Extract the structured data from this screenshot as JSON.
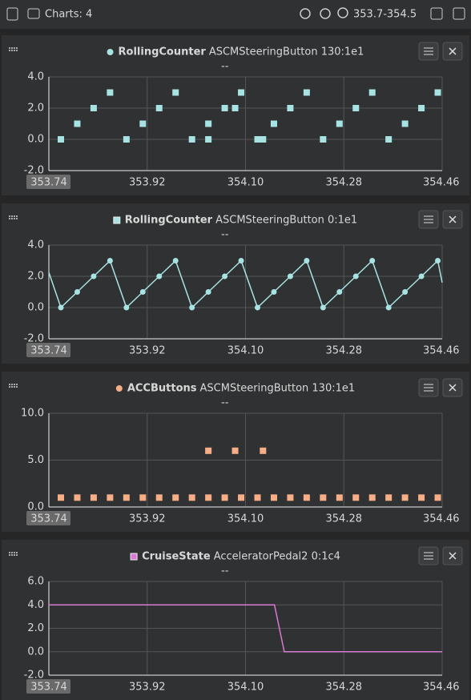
{
  "toolbar": {
    "charts_label": "Charts: 4",
    "range": "353.7-354.5"
  },
  "chart_data": [
    {
      "type": "scatter",
      "subtitle": "ASCMSteeringButton 130:1e1",
      "annotation": "--",
      "xlim": [
        353.74,
        354.46
      ],
      "xticks": [
        353.74,
        353.92,
        {
          "value": 354.1,
          "label": "354.10"
        },
        354.28,
        354.46
      ],
      "ylim": [
        -2,
        4
      ],
      "yticks": [
        {
          "value": 4,
          "label": "4.0"
        },
        {
          "value": 2,
          "label": "2.0"
        },
        {
          "value": 0,
          "label": "0.0"
        },
        {
          "value": -2,
          "label": "-2.0"
        }
      ],
      "grid": true,
      "series": [
        {
          "name": "RollingCounter",
          "color": "#a8e3e3",
          "x": [
            353.762,
            353.792,
            353.822,
            353.852,
            353.882,
            353.912,
            353.942,
            353.972,
            354.002,
            354.032,
            354.032,
            354.062,
            354.081,
            354.092,
            354.122,
            354.132,
            354.152,
            354.182,
            354.212,
            354.242,
            354.272,
            354.302,
            354.332,
            354.362,
            354.392,
            354.422,
            354.452
          ],
          "values": [
            0,
            1,
            2,
            3,
            0,
            1,
            2,
            3,
            0,
            1,
            0,
            2,
            2,
            3,
            0,
            0,
            1,
            2,
            3,
            0,
            1,
            2,
            3,
            0,
            1,
            2,
            3
          ]
        }
      ]
    },
    {
      "type": "line",
      "subtitle": "ASCMSteeringButton 0:1e1",
      "annotation": "--",
      "xlim": [
        353.74,
        354.46
      ],
      "xticks": [
        353.74,
        353.92,
        {
          "value": 354.1,
          "label": "354.10"
        },
        354.28,
        354.46
      ],
      "ylim": [
        -2,
        4
      ],
      "yticks": [
        {
          "value": 4,
          "label": "4.0"
        },
        {
          "value": 2,
          "label": "2.0"
        },
        {
          "value": 0,
          "label": "0.0"
        },
        {
          "value": -2,
          "label": "-2.0"
        }
      ],
      "grid": true,
      "series": [
        {
          "name": "RollingCounter",
          "color": "#a8e3e3",
          "x": [
            353.74,
            353.762,
            353.792,
            353.822,
            353.852,
            353.882,
            353.912,
            353.942,
            353.972,
            354.002,
            354.032,
            354.062,
            354.092,
            354.122,
            354.152,
            354.182,
            354.212,
            354.242,
            354.272,
            354.302,
            354.332,
            354.362,
            354.392,
            354.422,
            354.452,
            354.46
          ],
          "values": [
            2.25,
            0,
            1,
            2,
            3,
            0,
            1,
            2,
            3,
            0,
            1,
            2,
            3,
            0,
            1,
            2,
            3,
            0,
            1,
            2,
            3,
            0,
            1,
            2,
            3,
            1.6
          ]
        }
      ]
    },
    {
      "type": "scatter",
      "subtitle": "ASCMSteeringButton 130:1e1",
      "annotation": "--",
      "xlim": [
        353.74,
        354.46
      ],
      "xticks": [
        353.74,
        353.92,
        {
          "value": 354.1,
          "label": "354.10"
        },
        354.28,
        354.46
      ],
      "ylim": [
        0,
        10
      ],
      "yticks": [
        {
          "value": 10,
          "label": "10.0"
        },
        {
          "value": 5,
          "label": "5.0"
        },
        {
          "value": 0,
          "label": "0.0"
        }
      ],
      "grid": true,
      "series": [
        {
          "name": "ACCButtons",
          "color": "#f7ae87",
          "x": [
            353.762,
            353.792,
            353.822,
            353.852,
            353.882,
            353.912,
            353.942,
            353.972,
            354.002,
            354.032,
            354.032,
            354.062,
            354.081,
            354.092,
            354.122,
            354.132,
            354.152,
            354.182,
            354.212,
            354.242,
            354.272,
            354.302,
            354.332,
            354.362,
            354.392,
            354.422,
            354.452
          ],
          "values": [
            1,
            1,
            1,
            1,
            1,
            1,
            1,
            1,
            1,
            1,
            6,
            1,
            6,
            1,
            1,
            6,
            1,
            1,
            1,
            1,
            1,
            1,
            1,
            1,
            1,
            1,
            1
          ]
        }
      ]
    },
    {
      "type": "line",
      "subtitle": "AcceleratorPedal2 0:1c4",
      "annotation": "--",
      "xlim": [
        353.74,
        354.46
      ],
      "xticks": [
        353.74,
        353.92,
        {
          "value": 354.1,
          "label": "354.10"
        },
        354.28,
        354.46
      ],
      "ylim": [
        -2,
        6
      ],
      "yticks": [
        {
          "value": 6,
          "label": "6.0"
        },
        {
          "value": 4,
          "label": "4.0"
        },
        {
          "value": 2,
          "label": "2.0"
        },
        {
          "value": 0,
          "label": "0.0"
        },
        {
          "value": -2,
          "label": "-2.0"
        }
      ],
      "grid": true,
      "series": [
        {
          "name": "CruiseState",
          "color": "#d77ad6",
          "x": [
            353.74,
            354.153,
            354.171,
            354.46
          ],
          "values": [
            4,
            4,
            0,
            0
          ]
        }
      ]
    }
  ]
}
